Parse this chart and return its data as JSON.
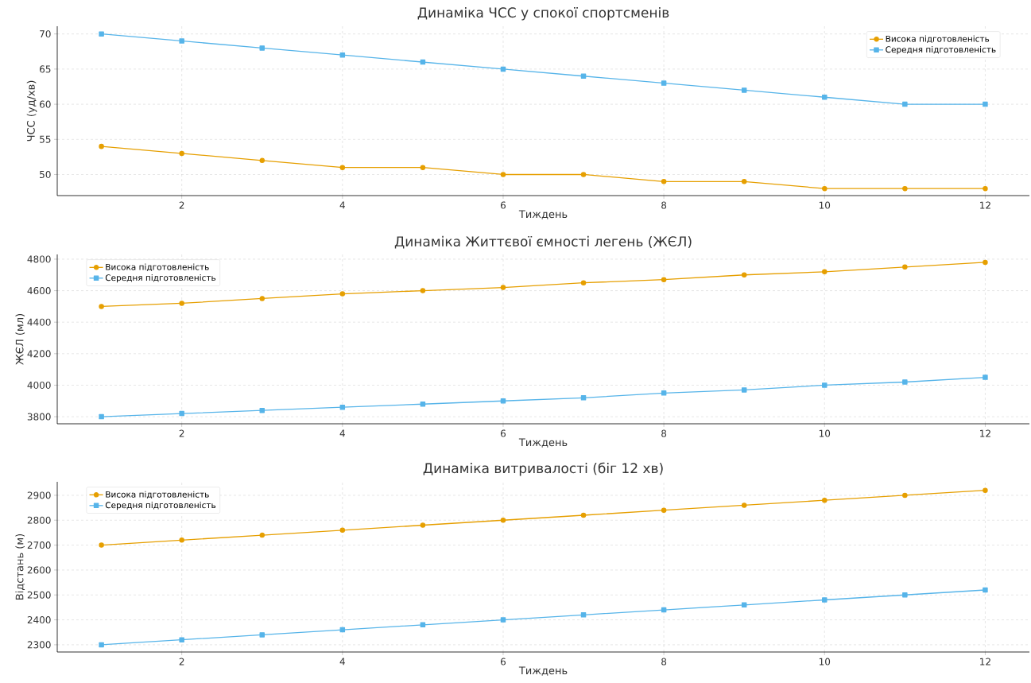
{
  "chart_data": [
    {
      "type": "line",
      "title": "Динаміка ЧСС у спокої спортсменів",
      "xlabel": "Тиждень",
      "ylabel": "ЧСС (уд/хв)",
      "x": [
        1,
        2,
        3,
        4,
        5,
        6,
        7,
        8,
        9,
        10,
        11,
        12
      ],
      "xlim": [
        0.45,
        12.55
      ],
      "xticks": [
        2,
        4,
        6,
        8,
        10,
        12
      ],
      "ylim": [
        47,
        71.1
      ],
      "yticks": [
        50,
        55,
        60,
        65,
        70
      ],
      "grid": true,
      "legend": "top right",
      "line_style": "solid",
      "series": [
        {
          "name": "Висока підготовленість",
          "color": "#e69f00",
          "marker": "circle",
          "values": [
            54,
            53,
            52,
            51,
            51,
            50,
            50,
            49,
            49,
            48,
            48,
            48
          ]
        },
        {
          "name": "Середня підготовленість",
          "color": "#56b4e9",
          "marker": "square",
          "values": [
            70,
            69,
            68,
            67,
            66,
            65,
            64,
            63,
            62,
            61,
            60,
            60
          ]
        }
      ]
    },
    {
      "type": "line",
      "title": "Динаміка Життєвої ємності легень (ЖЄЛ)",
      "xlabel": "Тиждень",
      "ylabel": "ЖЄЛ (мл)",
      "x": [
        1,
        2,
        3,
        4,
        5,
        6,
        7,
        8,
        9,
        10,
        11,
        12
      ],
      "xlim": [
        0.45,
        12.55
      ],
      "xticks": [
        2,
        4,
        6,
        8,
        10,
        12
      ],
      "ylim": [
        3755,
        4830
      ],
      "yticks": [
        3800,
        4000,
        4200,
        4400,
        4600,
        4800
      ],
      "grid": true,
      "legend": "top left",
      "line_style": "solid",
      "series": [
        {
          "name": "Висока підготовленість",
          "color": "#e69f00",
          "marker": "circle",
          "values": [
            4500,
            4520,
            4550,
            4580,
            4600,
            4620,
            4650,
            4670,
            4700,
            4720,
            4750,
            4780
          ]
        },
        {
          "name": "Середня підготовленість",
          "color": "#56b4e9",
          "marker": "square",
          "values": [
            3800,
            3820,
            3840,
            3860,
            3880,
            3900,
            3920,
            3950,
            3970,
            4000,
            4020,
            4050
          ]
        }
      ]
    },
    {
      "type": "line",
      "title": "Динаміка витривалості (біг 12 хв)",
      "xlabel": "Тиждень",
      "ylabel": "Відстань (м)",
      "x": [
        1,
        2,
        3,
        4,
        5,
        6,
        7,
        8,
        9,
        10,
        11,
        12
      ],
      "xlim": [
        0.45,
        12.55
      ],
      "xticks": [
        2,
        4,
        6,
        8,
        10,
        12
      ],
      "ylim": [
        2271,
        2954
      ],
      "yticks": [
        2300,
        2400,
        2500,
        2600,
        2700,
        2800,
        2900
      ],
      "grid": true,
      "legend": "top left",
      "line_style": "solid",
      "series": [
        {
          "name": "Висока підготовленість",
          "color": "#e69f00",
          "marker": "circle",
          "values": [
            2700,
            2720,
            2740,
            2760,
            2780,
            2800,
            2820,
            2840,
            2860,
            2880,
            2900,
            2920
          ]
        },
        {
          "name": "Середня підготовленість",
          "color": "#56b4e9",
          "marker": "square",
          "values": [
            2300,
            2320,
            2340,
            2360,
            2380,
            2400,
            2420,
            2440,
            2460,
            2480,
            2500,
            2520
          ]
        }
      ]
    }
  ]
}
